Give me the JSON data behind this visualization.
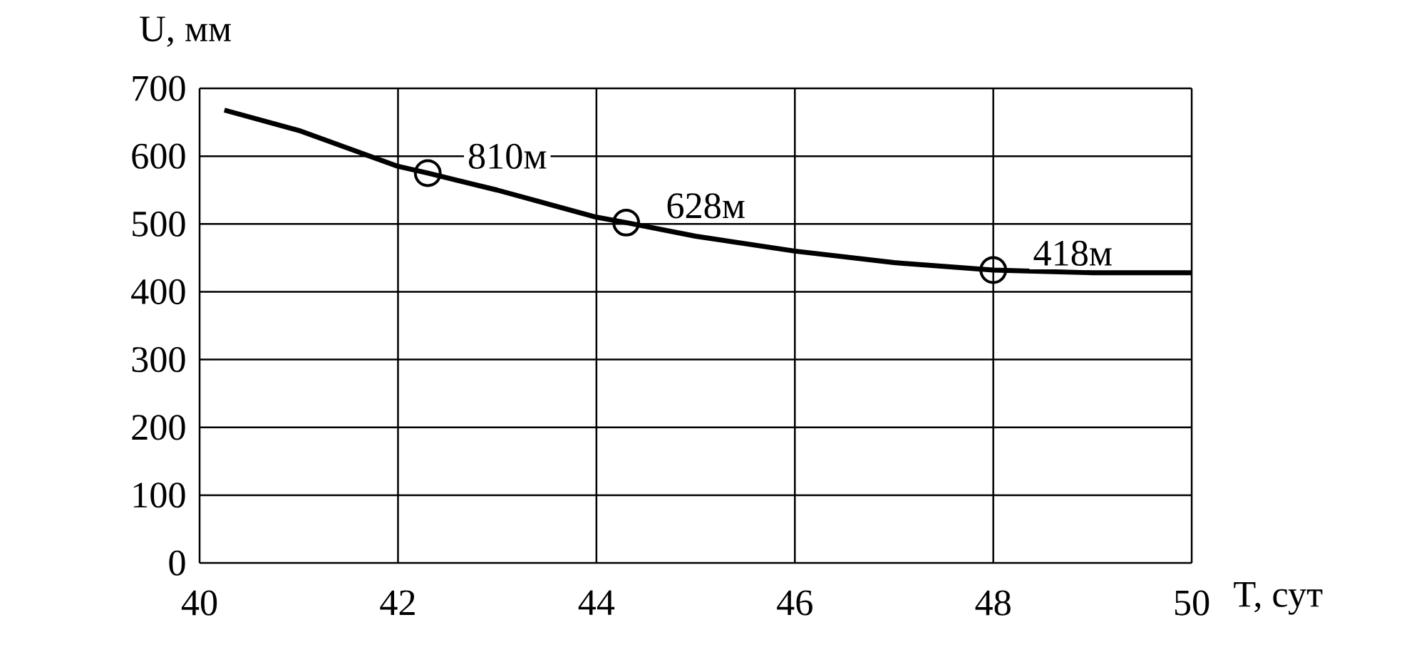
{
  "chart_data": {
    "type": "line",
    "xlabel": "T, сут",
    "ylabel": "U, мм",
    "series": [
      {
        "color": "#000000",
        "marker": "none",
        "x": [
          40.25,
          41,
          42,
          42.3,
          43,
          44,
          44.3,
          45,
          46,
          47,
          48,
          49,
          50
        ],
        "values": [
          668,
          638,
          585,
          575,
          550,
          510,
          502,
          482,
          460,
          443,
          432,
          428,
          428
        ]
      },
      {
        "type": "scatter",
        "color": "#000000",
        "marker": "circle",
        "x": [
          42.3,
          44.3,
          48
        ],
        "values": [
          575,
          502,
          432
        ]
      }
    ],
    "annotations": [
      {
        "text": "810м",
        "x": 42.3,
        "y": 575
      },
      {
        "text": "628м",
        "x": 44.3,
        "y": 502
      },
      {
        "text": "418м",
        "x": 48,
        "y": 432
      }
    ],
    "xlim": [
      40,
      50
    ],
    "ylim": [
      0,
      700
    ],
    "xticks": [
      40,
      42,
      44,
      46,
      48,
      50
    ],
    "yticks": [
      0,
      100,
      200,
      300,
      400,
      500,
      600,
      700
    ],
    "grid": true,
    "legend": false
  }
}
